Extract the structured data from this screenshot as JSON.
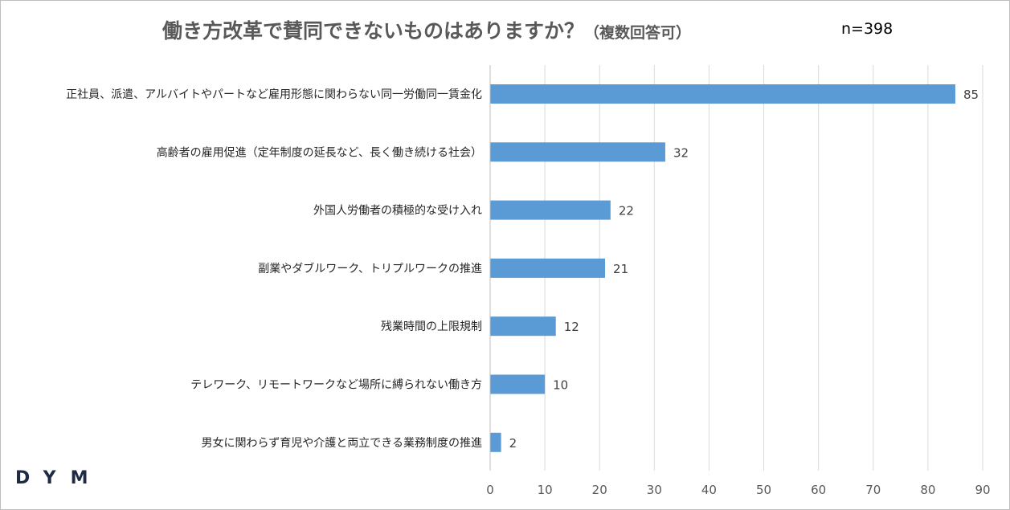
{
  "chart_data": {
    "type": "bar",
    "orientation": "horizontal",
    "title": "働き方改革で賛同できないものはありますか？",
    "subtitle": "（複数回答可）",
    "sample_size": "n=398",
    "categories": [
      "正社員、派遣、アルバイトやパートなど雇用形態に関わらない同一労働同一賃金化",
      "高齢者の雇用促進（定年制度の延長など、長く働き続ける社会）",
      "外国人労働者の積極的な受け入れ",
      "副業やダブルワーク、トリプルワークの推進",
      "残業時間の上限規制",
      "テレワーク、リモートワークなど場所に縛られない働き方",
      "男女に関わらず育児や介護と両立できる業務制度の推進"
    ],
    "values": [
      85,
      32,
      22,
      21,
      12,
      10,
      2
    ],
    "xlim": [
      0,
      90
    ],
    "xticks": [
      0,
      10,
      20,
      30,
      40,
      50,
      60,
      70,
      80,
      90
    ],
    "grid": "vertical",
    "bar_color": "#5b9bd5",
    "grid_color": "#d9d9d9"
  },
  "logo_text": "DYM"
}
